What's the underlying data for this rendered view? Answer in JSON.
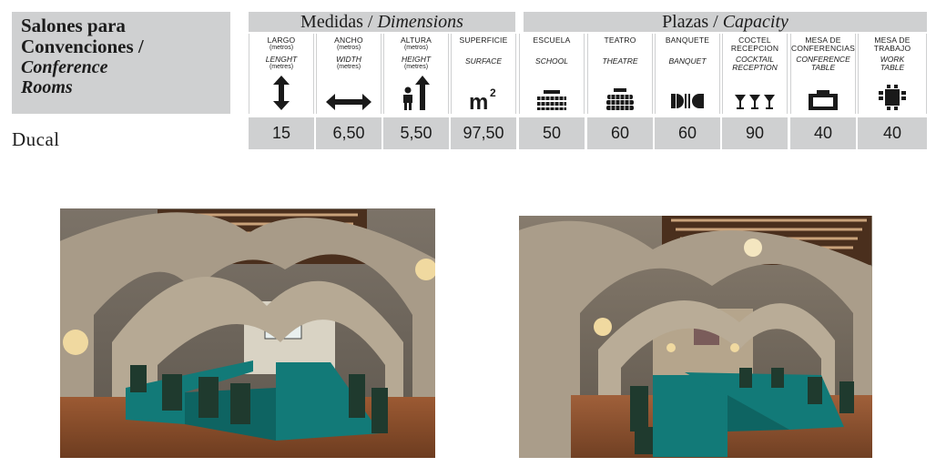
{
  "title": {
    "line1": "Salones para",
    "line2": "Convenciones /",
    "line3": "Conference",
    "line4": "Rooms"
  },
  "groups": {
    "dimensions": {
      "es": "Medidas / ",
      "en": "Dimensions"
    },
    "capacity": {
      "es": "Plazas / ",
      "en": "Capacity"
    }
  },
  "columns": [
    {
      "es": "LARGO",
      "sub": "(metros)",
      "en": "LENGHT",
      "en_sub": "(metres)",
      "icon": "vertical-arrow-icon"
    },
    {
      "es": "ANCHO",
      "sub": "(metros)",
      "en": "WIDTH",
      "en_sub": "(metres)",
      "icon": "horizontal-arrow-icon"
    },
    {
      "es": "ALTURA",
      "sub": "(metros)",
      "en": "HEIGHT",
      "en_sub": "(metres)",
      "icon": "person-height-icon"
    },
    {
      "es": "SUPERFICIE",
      "sub": "",
      "en": "SURFACE",
      "en_sub": "",
      "icon": "square-meters-icon"
    },
    {
      "es": "ESCUELA",
      "sub": "",
      "en": "SCHOOL",
      "en_sub": "",
      "icon": "school-layout-icon"
    },
    {
      "es": "TEATRO",
      "sub": "",
      "en": "THEATRE",
      "en_sub": "",
      "icon": "theatre-layout-icon"
    },
    {
      "es": "BANQUETE",
      "sub": "",
      "en": "BANQUET",
      "en_sub": "",
      "icon": "banquet-layout-icon"
    },
    {
      "es": "COCTEL",
      "es2": "RECEPCION",
      "sub": "",
      "en": "COCKTAIL",
      "en2": "RECEPTION",
      "en_sub": "",
      "icon": "cocktail-glasses-icon"
    },
    {
      "es": "MESA DE",
      "es2": "CONFERENCIAS",
      "sub": "",
      "en": "CONFERENCE",
      "en2": "TABLE",
      "en_sub": "",
      "icon": "conference-table-icon"
    },
    {
      "es": "MESA DE",
      "es2": "TRABAJO",
      "sub": "",
      "en": "WORK",
      "en2": "TABLE",
      "en_sub": "",
      "icon": "work-table-icon"
    }
  ],
  "room": {
    "name": "Ducal",
    "values": [
      "15",
      "6,50",
      "5,50",
      "97,50",
      "50",
      "60",
      "60",
      "90",
      "40",
      "40"
    ]
  },
  "photos": [
    {
      "icon": "conference-hall-photo-1"
    },
    {
      "icon": "conference-hall-photo-2"
    }
  ],
  "colors": {
    "header_gray": "#cfd0d1",
    "table_teal": "#127a78",
    "stone": "#9b8f80",
    "wood": "#6b3b1f"
  }
}
